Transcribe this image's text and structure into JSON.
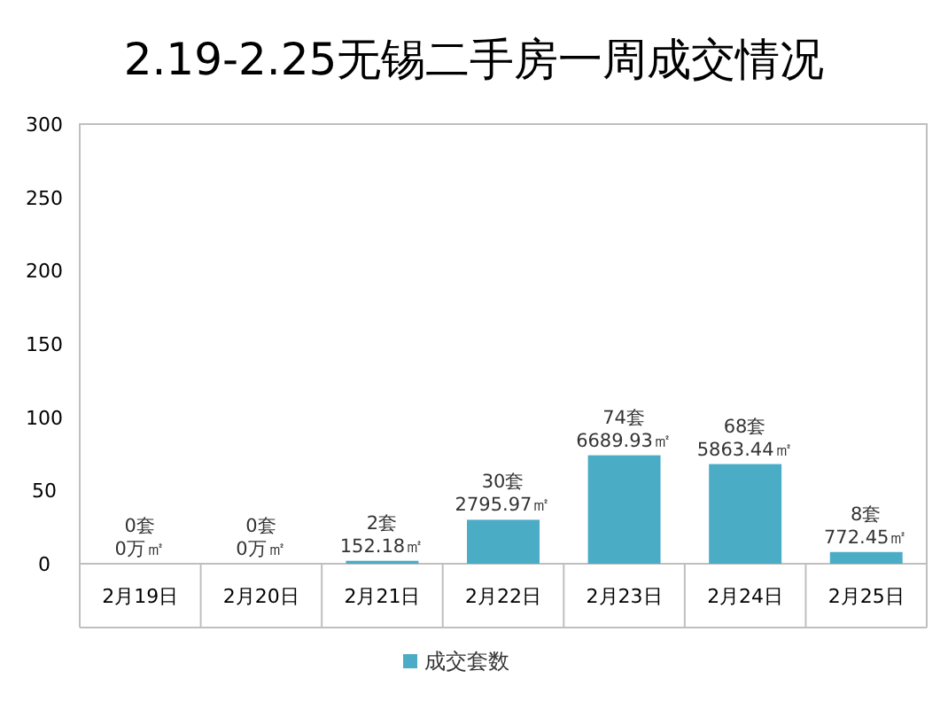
{
  "chart_data": {
    "type": "bar",
    "title": "2.19-2.25无锡二手房一周成交情况",
    "categories": [
      "2月19日",
      "2月20日",
      "2月21日",
      "2月22日",
      "2月23日",
      "2月24日",
      "2月25日"
    ],
    "series": [
      {
        "name": "成交套数",
        "color": "#4bacc6",
        "values": [
          0,
          0,
          2,
          30,
          74,
          68,
          8
        ],
        "value_labels": [
          "0套\n0万㎡",
          "0套\n0万㎡",
          "2套\n152.18㎡",
          "30套\n2795.97㎡",
          "74套\n6689.93㎡",
          "68套\n5863.44㎡",
          "8套\n772.45㎡"
        ]
      }
    ],
    "ylim": [
      0,
      300
    ],
    "yticks": [
      0,
      50,
      100,
      150,
      200,
      250,
      300
    ],
    "legend": "bottom",
    "grid": false
  }
}
